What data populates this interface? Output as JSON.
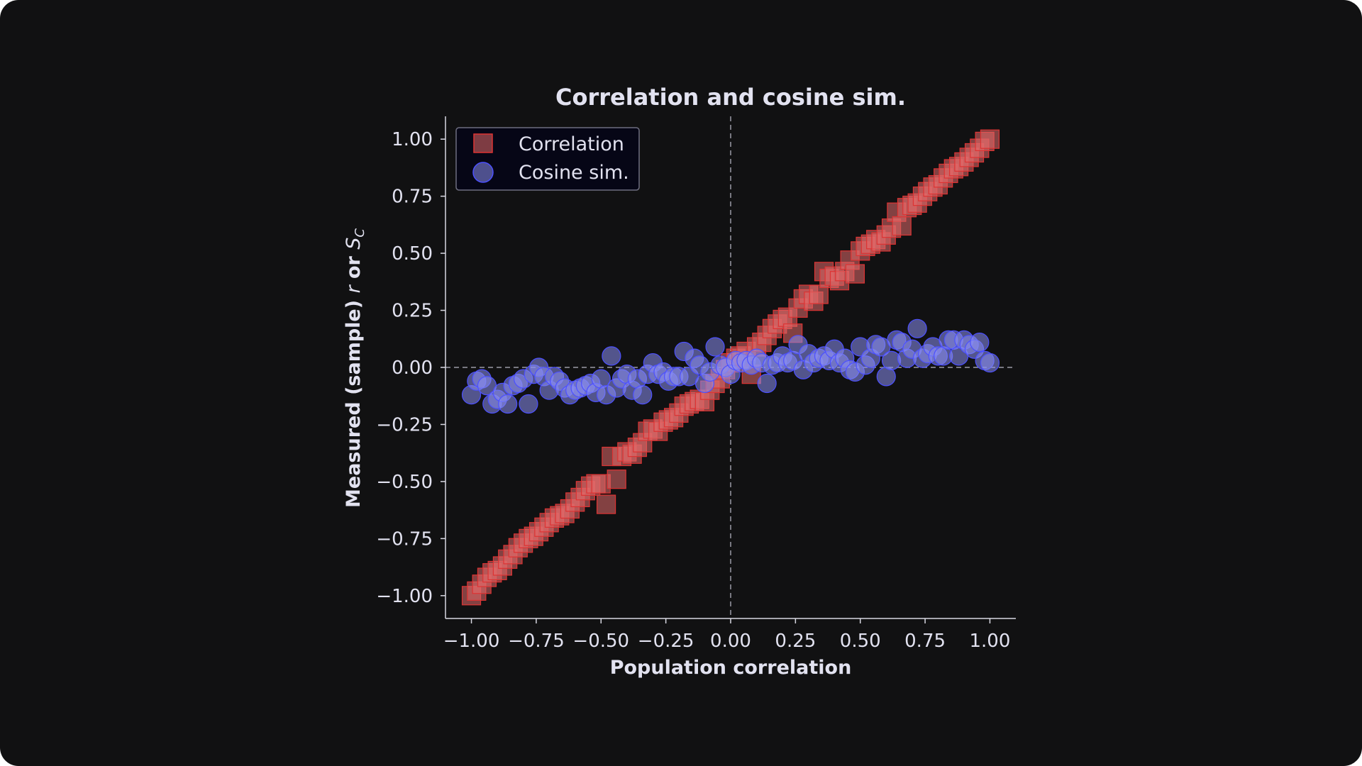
{
  "chart_data": {
    "type": "scatter",
    "title": "Correlation and cosine sim.",
    "xlabel": "Population correlation",
    "ylabel_main": "Measured (sample) ",
    "ylabel_r": "r",
    "ylabel_or": " or ",
    "ylabel_s": "S",
    "ylabel_sub": "C",
    "xlim": [
      -1.1,
      1.1
    ],
    "ylim": [
      -1.1,
      1.1
    ],
    "x_ticks": [
      -1.0,
      -0.75,
      -0.5,
      -0.25,
      0.0,
      0.25,
      0.5,
      0.75,
      1.0
    ],
    "y_ticks": [
      -1.0,
      -0.75,
      -0.5,
      -0.25,
      0.0,
      0.25,
      0.5,
      0.75,
      1.0
    ],
    "x_tick_labels": [
      "−1.00",
      "−0.75",
      "−0.50",
      "−0.25",
      "0.00",
      "0.25",
      "0.50",
      "0.75",
      "1.00"
    ],
    "y_tick_labels": [
      "−1.00",
      "−0.75",
      "−0.50",
      "−0.25",
      "0.00",
      "0.25",
      "0.50",
      "0.75",
      "1.00"
    ],
    "reference_lines": {
      "x": 0,
      "y": 0,
      "style": "dashed"
    },
    "grid": false,
    "legend_position": "top-left",
    "series": [
      {
        "name": "Correlation",
        "marker": "square",
        "color": "#e26a6a",
        "points": [
          [
            -1.0,
            -1.0
          ],
          [
            -0.98,
            -0.98
          ],
          [
            -0.96,
            -0.95
          ],
          [
            -0.94,
            -0.92
          ],
          [
            -0.92,
            -0.9
          ],
          [
            -0.9,
            -0.89
          ],
          [
            -0.88,
            -0.87
          ],
          [
            -0.86,
            -0.84
          ],
          [
            -0.84,
            -0.82
          ],
          [
            -0.82,
            -0.79
          ],
          [
            -0.8,
            -0.77
          ],
          [
            -0.78,
            -0.75
          ],
          [
            -0.76,
            -0.74
          ],
          [
            -0.74,
            -0.72
          ],
          [
            -0.72,
            -0.7
          ],
          [
            -0.7,
            -0.68
          ],
          [
            -0.68,
            -0.66
          ],
          [
            -0.66,
            -0.65
          ],
          [
            -0.64,
            -0.64
          ],
          [
            -0.62,
            -0.62
          ],
          [
            -0.6,
            -0.59
          ],
          [
            -0.58,
            -0.57
          ],
          [
            -0.56,
            -0.54
          ],
          [
            -0.54,
            -0.52
          ],
          [
            -0.52,
            -0.51
          ],
          [
            -0.5,
            -0.51
          ],
          [
            -0.48,
            -0.6
          ],
          [
            -0.46,
            -0.39
          ],
          [
            -0.44,
            -0.49
          ],
          [
            -0.42,
            -0.39
          ],
          [
            -0.4,
            -0.37
          ],
          [
            -0.38,
            -0.38
          ],
          [
            -0.36,
            -0.35
          ],
          [
            -0.34,
            -0.33
          ],
          [
            -0.32,
            -0.28
          ],
          [
            -0.3,
            -0.27
          ],
          [
            -0.28,
            -0.28
          ],
          [
            -0.26,
            -0.24
          ],
          [
            -0.24,
            -0.23
          ],
          [
            -0.22,
            -0.22
          ],
          [
            -0.2,
            -0.2
          ],
          [
            -0.18,
            -0.17
          ],
          [
            -0.16,
            -0.16
          ],
          [
            -0.14,
            -0.15
          ],
          [
            -0.12,
            -0.14
          ],
          [
            -0.1,
            -0.15
          ],
          [
            -0.08,
            -0.1
          ],
          [
            -0.06,
            -0.07
          ],
          [
            -0.04,
            -0.05
          ],
          [
            -0.02,
            -0.01
          ],
          [
            0.0,
            0.02
          ],
          [
            0.02,
            0.04
          ],
          [
            0.04,
            0.05
          ],
          [
            0.06,
            0.07
          ],
          [
            0.08,
            -0.03
          ],
          [
            0.1,
            0.09
          ],
          [
            0.12,
            0.11
          ],
          [
            0.14,
            0.14
          ],
          [
            0.16,
            0.17
          ],
          [
            0.18,
            0.19
          ],
          [
            0.2,
            0.21
          ],
          [
            0.22,
            0.22
          ],
          [
            0.24,
            0.15
          ],
          [
            0.26,
            0.26
          ],
          [
            0.28,
            0.3
          ],
          [
            0.3,
            0.32
          ],
          [
            0.32,
            0.29
          ],
          [
            0.34,
            0.32
          ],
          [
            0.36,
            0.42
          ],
          [
            0.38,
            0.39
          ],
          [
            0.4,
            0.4
          ],
          [
            0.42,
            0.38
          ],
          [
            0.44,
            0.42
          ],
          [
            0.46,
            0.47
          ],
          [
            0.48,
            0.41
          ],
          [
            0.5,
            0.51
          ],
          [
            0.52,
            0.53
          ],
          [
            0.54,
            0.54
          ],
          [
            0.56,
            0.56
          ],
          [
            0.58,
            0.55
          ],
          [
            0.6,
            0.58
          ],
          [
            0.62,
            0.61
          ],
          [
            0.64,
            0.68
          ],
          [
            0.66,
            0.62
          ],
          [
            0.68,
            0.7
          ],
          [
            0.7,
            0.71
          ],
          [
            0.72,
            0.72
          ],
          [
            0.74,
            0.75
          ],
          [
            0.76,
            0.77
          ],
          [
            0.78,
            0.79
          ],
          [
            0.8,
            0.8
          ],
          [
            0.82,
            0.83
          ],
          [
            0.84,
            0.85
          ],
          [
            0.86,
            0.87
          ],
          [
            0.88,
            0.88
          ],
          [
            0.9,
            0.9
          ],
          [
            0.92,
            0.92
          ],
          [
            0.94,
            0.94
          ],
          [
            0.96,
            0.96
          ],
          [
            0.98,
            0.99
          ],
          [
            1.0,
            1.0
          ]
        ]
      },
      {
        "name": "Cosine sim.",
        "marker": "circle",
        "color": "#8a8ef0",
        "points": [
          [
            -1.0,
            -0.12
          ],
          [
            -0.98,
            -0.06
          ],
          [
            -0.96,
            -0.05
          ],
          [
            -0.94,
            -0.08
          ],
          [
            -0.92,
            -0.16
          ],
          [
            -0.9,
            -0.14
          ],
          [
            -0.88,
            -0.11
          ],
          [
            -0.86,
            -0.16
          ],
          [
            -0.84,
            -0.08
          ],
          [
            -0.82,
            -0.07
          ],
          [
            -0.8,
            -0.05
          ],
          [
            -0.78,
            -0.16
          ],
          [
            -0.76,
            -0.03
          ],
          [
            -0.74,
            0.0
          ],
          [
            -0.72,
            -0.04
          ],
          [
            -0.7,
            -0.1
          ],
          [
            -0.68,
            -0.04
          ],
          [
            -0.66,
            -0.06
          ],
          [
            -0.64,
            -0.09
          ],
          [
            -0.62,
            -0.12
          ],
          [
            -0.6,
            -0.1
          ],
          [
            -0.58,
            -0.09
          ],
          [
            -0.56,
            -0.08
          ],
          [
            -0.54,
            -0.07
          ],
          [
            -0.52,
            -0.11
          ],
          [
            -0.5,
            -0.05
          ],
          [
            -0.48,
            -0.12
          ],
          [
            -0.46,
            0.05
          ],
          [
            -0.44,
            -0.09
          ],
          [
            -0.42,
            -0.05
          ],
          [
            -0.4,
            -0.03
          ],
          [
            -0.38,
            -0.1
          ],
          [
            -0.36,
            -0.05
          ],
          [
            -0.34,
            -0.12
          ],
          [
            -0.32,
            -0.03
          ],
          [
            -0.3,
            0.02
          ],
          [
            -0.28,
            -0.03
          ],
          [
            -0.26,
            -0.02
          ],
          [
            -0.24,
            -0.06
          ],
          [
            -0.22,
            -0.04
          ],
          [
            -0.2,
            -0.04
          ],
          [
            -0.18,
            0.07
          ],
          [
            -0.16,
            -0.04
          ],
          [
            -0.14,
            0.04
          ],
          [
            -0.12,
            0.01
          ],
          [
            -0.1,
            -0.07
          ],
          [
            -0.08,
            -0.02
          ],
          [
            -0.06,
            0.09
          ],
          [
            -0.04,
            0.01
          ],
          [
            -0.02,
            0.0
          ],
          [
            0.0,
            -0.03
          ],
          [
            0.02,
            0.03
          ],
          [
            0.04,
            0.02
          ],
          [
            0.06,
            0.03
          ],
          [
            0.08,
            0.01
          ],
          [
            0.1,
            0.04
          ],
          [
            0.12,
            0.02
          ],
          [
            0.14,
            -0.07
          ],
          [
            0.16,
            0.01
          ],
          [
            0.18,
            0.02
          ],
          [
            0.2,
            0.05
          ],
          [
            0.22,
            0.02
          ],
          [
            0.24,
            0.03
          ],
          [
            0.26,
            0.1
          ],
          [
            0.28,
            -0.01
          ],
          [
            0.3,
            0.06
          ],
          [
            0.32,
            0.02
          ],
          [
            0.34,
            0.04
          ],
          [
            0.36,
            0.05
          ],
          [
            0.38,
            0.03
          ],
          [
            0.4,
            0.08
          ],
          [
            0.42,
            0.02
          ],
          [
            0.44,
            0.04
          ],
          [
            0.46,
            -0.01
          ],
          [
            0.48,
            -0.02
          ],
          [
            0.5,
            0.09
          ],
          [
            0.52,
            0.01
          ],
          [
            0.54,
            0.04
          ],
          [
            0.56,
            0.1
          ],
          [
            0.58,
            0.09
          ],
          [
            0.6,
            -0.04
          ],
          [
            0.62,
            0.03
          ],
          [
            0.64,
            0.12
          ],
          [
            0.66,
            0.11
          ],
          [
            0.68,
            0.04
          ],
          [
            0.7,
            0.08
          ],
          [
            0.72,
            0.17
          ],
          [
            0.74,
            0.04
          ],
          [
            0.76,
            0.06
          ],
          [
            0.78,
            0.09
          ],
          [
            0.8,
            0.05
          ],
          [
            0.82,
            0.05
          ],
          [
            0.84,
            0.12
          ],
          [
            0.86,
            0.12
          ],
          [
            0.88,
            0.05
          ],
          [
            0.9,
            0.12
          ],
          [
            0.92,
            0.1
          ],
          [
            0.94,
            0.08
          ],
          [
            0.96,
            0.11
          ],
          [
            0.98,
            0.03
          ],
          [
            1.0,
            0.02
          ]
        ]
      }
    ]
  }
}
